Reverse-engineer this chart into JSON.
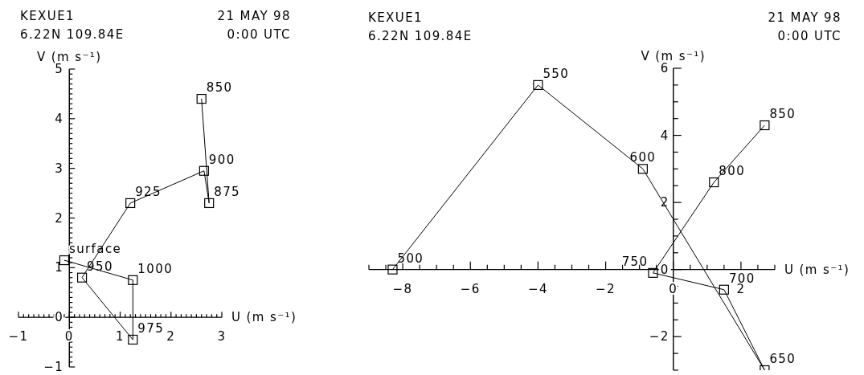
{
  "chart_data": [
    {
      "type": "line",
      "title": "KEXUE1",
      "subtitle": "6.22N 109.84E",
      "xlabel": "U (m s⁻¹)",
      "ylabel": "V (m s⁻¹)",
      "annotations": [
        "21 MAY 98",
        "0:00 UTC",
        {
          "text": "surface",
          "x": -0.1,
          "y": 1.15
        },
        {
          "text": "1000",
          "x": 1.25,
          "y": 0.75
        },
        {
          "text": "975",
          "x": 1.25,
          "y": -0.45
        },
        {
          "text": "950",
          "x": 0.25,
          "y": 0.8
        },
        {
          "text": "925",
          "x": 1.2,
          "y": 2.3
        },
        {
          "text": "900",
          "x": 2.65,
          "y": 2.95
        },
        {
          "text": "875",
          "x": 2.75,
          "y": 2.3
        },
        {
          "text": "850",
          "x": 2.6,
          "y": 4.4
        }
      ],
      "x": [
        -0.1,
        1.25,
        1.25,
        0.25,
        1.2,
        2.65,
        2.75,
        2.6
      ],
      "series": [
        {
          "color": "#000000",
          "values": [
            1.15,
            0.75,
            -0.45,
            0.8,
            2.3,
            2.95,
            2.3,
            4.4
          ]
        }
      ],
      "marker": "square",
      "line_style": "solid",
      "xlim": [
        -1,
        3
      ],
      "ylim": [
        -1,
        5
      ],
      "xticks": [
        -1,
        {
          "value": -0.9,
          "label": null
        },
        {
          "value": -0.8,
          "label": null
        },
        {
          "value": -0.7,
          "label": null
        },
        {
          "value": -0.6,
          "label": null
        },
        {
          "value": -0.5,
          "label": null
        },
        {
          "value": -0.4,
          "label": null
        },
        {
          "value": -0.3,
          "label": null
        },
        {
          "value": -0.2,
          "label": null
        },
        {
          "value": -0.1,
          "label": null
        },
        0,
        {
          "value": 0.1,
          "label": null
        },
        {
          "value": 0.2,
          "label": null
        },
        {
          "value": 0.3,
          "label": null
        },
        {
          "value": 0.4,
          "label": null
        },
        {
          "value": 0.5,
          "label": null
        },
        {
          "value": 0.6,
          "label": null
        },
        {
          "value": 0.7,
          "label": null
        },
        {
          "value": 0.8,
          "label": null
        },
        {
          "value": 0.9,
          "label": null
        },
        1,
        {
          "value": 1.1,
          "label": null
        },
        {
          "value": 1.2,
          "label": null
        },
        {
          "value": 1.3,
          "label": null
        },
        {
          "value": 1.4,
          "label": null
        },
        {
          "value": 1.5,
          "label": null
        },
        {
          "value": 1.6,
          "label": null
        },
        {
          "value": 1.7,
          "label": null
        },
        {
          "value": 1.8,
          "label": null
        },
        {
          "value": 1.9,
          "label": null
        },
        2,
        {
          "value": 2.1,
          "label": null
        },
        {
          "value": 2.2,
          "label": null
        },
        {
          "value": 2.3,
          "label": null
        },
        {
          "value": 2.4,
          "label": null
        },
        {
          "value": 2.5,
          "label": null
        },
        {
          "value": 2.6,
          "label": null
        },
        {
          "value": 2.7,
          "label": null
        },
        {
          "value": 2.8,
          "label": null
        },
        {
          "value": 2.9,
          "label": null
        },
        3
      ],
      "yticks": [
        -1,
        {
          "value": -0.9,
          "label": null
        },
        {
          "value": -0.8,
          "label": null
        },
        {
          "value": -0.7,
          "label": null
        },
        {
          "value": -0.6,
          "label": null
        },
        {
          "value": -0.5,
          "label": null
        },
        {
          "value": -0.4,
          "label": null
        },
        {
          "value": -0.3,
          "label": null
        },
        {
          "value": -0.2,
          "label": null
        },
        {
          "value": -0.1,
          "label": null
        },
        0,
        {
          "value": 0.1,
          "label": null
        },
        {
          "value": 0.2,
          "label": null
        },
        {
          "value": 0.3,
          "label": null
        },
        {
          "value": 0.4,
          "label": null
        },
        {
          "value": 0.5,
          "label": null
        },
        {
          "value": 0.6,
          "label": null
        },
        {
          "value": 0.7,
          "label": null
        },
        {
          "value": 0.8,
          "label": null
        },
        {
          "value": 0.9,
          "label": null
        },
        1,
        {
          "value": 1.1,
          "label": null
        },
        {
          "value": 1.2,
          "label": null
        },
        {
          "value": 1.3,
          "label": null
        },
        {
          "value": 1.4,
          "label": null
        },
        {
          "value": 1.5,
          "label": null
        },
        {
          "value": 1.6,
          "label": null
        },
        {
          "value": 1.7,
          "label": null
        },
        {
          "value": 1.8,
          "label": null
        },
        {
          "value": 1.9,
          "label": null
        },
        2,
        {
          "value": 2.1,
          "label": null
        },
        {
          "value": 2.2,
          "label": null
        },
        {
          "value": 2.3,
          "label": null
        },
        {
          "value": 2.4,
          "label": null
        },
        {
          "value": 2.5,
          "label": null
        },
        {
          "value": 2.6,
          "label": null
        },
        {
          "value": 2.7,
          "label": null
        },
        {
          "value": 2.8,
          "label": null
        },
        {
          "value": 2.9,
          "label": null
        },
        3,
        {
          "value": 3.1,
          "label": null
        },
        {
          "value": 3.2,
          "label": null
        },
        {
          "value": 3.3,
          "label": null
        },
        {
          "value": 3.4,
          "label": null
        },
        {
          "value": 3.5,
          "label": null
        },
        {
          "value": 3.6,
          "label": null
        },
        {
          "value": 3.7,
          "label": null
        },
        {
          "value": 3.8,
          "label": null
        },
        {
          "value": 3.9,
          "label": null
        },
        4,
        {
          "value": 4.1,
          "label": null
        },
        {
          "value": 4.2,
          "label": null
        },
        {
          "value": 4.3,
          "label": null
        },
        {
          "value": 4.4,
          "label": null
        },
        {
          "value": 4.5,
          "label": null
        },
        {
          "value": 4.6,
          "label": null
        },
        {
          "value": 4.7,
          "label": null
        },
        {
          "value": 4.8,
          "label": null
        },
        {
          "value": 4.9,
          "label": null
        },
        5
      ]
    },
    {
      "type": "line",
      "title": "KEXUE1",
      "subtitle": "6.22N 109.84E",
      "xlabel": "U (m s⁻¹)",
      "ylabel": "V (m s⁻¹)",
      "annotations": [
        "21 MAY 98",
        "0:00 UTC",
        {
          "text": "500",
          "x": -8.3,
          "y": 0
        },
        {
          "text": "550",
          "x": -4,
          "y": 5.5
        },
        {
          "text": "600",
          "x": -0.9,
          "y": 3
        },
        {
          "text": "650",
          "x": 2.7,
          "y": -3
        },
        {
          "text": "700",
          "x": 1.5,
          "y": -0.6
        },
        {
          "text": "750",
          "x": -0.6,
          "y": -0.1
        },
        {
          "text": "800",
          "x": 1.2,
          "y": 2.6
        },
        {
          "text": "850",
          "x": 2.7,
          "y": 4.3
        }
      ],
      "x": [
        -8.3,
        -4,
        -0.9,
        2.7,
        1.5,
        -0.6,
        1.2,
        2.7
      ],
      "series": [
        {
          "color": "#000000",
          "values": [
            0,
            5.5,
            3,
            -3,
            -0.6,
            -0.1,
            2.6,
            4.3
          ]
        }
      ],
      "marker": "square",
      "line_style": "solid",
      "xlim": [
        -9,
        3
      ],
      "ylim": [
        -3,
        6
      ],
      "xticks": [
        {
          "value": -9,
          "label": null
        },
        {
          "value": -8.5,
          "label": null
        },
        -8,
        {
          "value": -7.5,
          "label": null
        },
        {
          "value": -7,
          "label": null
        },
        {
          "value": -6.5,
          "label": null
        },
        -6,
        {
          "value": -5.5,
          "label": null
        },
        {
          "value": -5,
          "label": null
        },
        {
          "value": -4.5,
          "label": null
        },
        -4,
        {
          "value": -3.5,
          "label": null
        },
        {
          "value": -3,
          "label": null
        },
        {
          "value": -2.5,
          "label": null
        },
        -2,
        {
          "value": -1.5,
          "label": null
        },
        {
          "value": -1,
          "label": null
        },
        {
          "value": -0.5,
          "label": null
        },
        0,
        {
          "value": 0.5,
          "label": null
        },
        {
          "value": 1,
          "label": null
        },
        {
          "value": 1.5,
          "label": null
        },
        2,
        {
          "value": 2.5,
          "label": null
        },
        {
          "value": 3,
          "label": null
        }
      ],
      "yticks": [
        {
          "value": -3,
          "label": null
        },
        {
          "value": -2.5,
          "label": null
        },
        -2,
        {
          "value": -1.5,
          "label": null
        },
        {
          "value": -1,
          "label": null
        },
        {
          "value": -0.5,
          "label": null
        },
        0,
        {
          "value": 0.5,
          "label": null
        },
        {
          "value": 1,
          "label": null
        },
        {
          "value": 1.5,
          "label": null
        },
        2,
        {
          "value": 2.5,
          "label": null
        },
        {
          "value": 3,
          "label": null
        },
        {
          "value": 3.5,
          "label": null
        },
        4,
        {
          "value": 4.5,
          "label": null
        },
        {
          "value": 5,
          "label": null
        },
        {
          "value": 5.5,
          "label": null
        },
        6
      ]
    }
  ]
}
